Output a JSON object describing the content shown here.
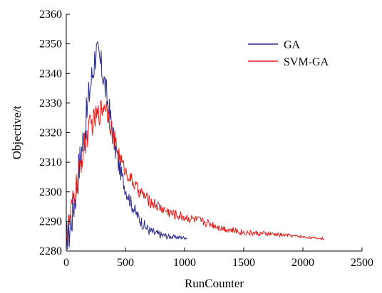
{
  "chart_data": {
    "type": "line",
    "title": "",
    "xlabel": "RunCounter",
    "ylabel": "Objective/t",
    "xlim": [
      0,
      2500
    ],
    "ylim": [
      2280,
      2360
    ],
    "xticks": [
      "0",
      "500",
      "1000",
      "1500",
      "2000",
      "2500"
    ],
    "yticks": [
      "2280",
      "2290",
      "2300",
      "2310",
      "2320",
      "2330",
      "2340",
      "2350",
      "2360"
    ],
    "grid": false,
    "legend_position": "top-right",
    "series": [
      {
        "name": "GA",
        "color": "#2b2b8f",
        "amplitude": 5,
        "points": [
          [
            0,
            2282
          ],
          [
            40,
            2290
          ],
          [
            80,
            2300
          ],
          [
            120,
            2312
          ],
          [
            160,
            2322
          ],
          [
            200,
            2335
          ],
          [
            230,
            2342
          ],
          [
            250,
            2348
          ],
          [
            270,
            2345
          ],
          [
            290,
            2343
          ],
          [
            310,
            2340
          ],
          [
            330,
            2335
          ],
          [
            360,
            2328
          ],
          [
            400,
            2318
          ],
          [
            450,
            2308
          ],
          [
            500,
            2301
          ],
          [
            550,
            2296
          ],
          [
            600,
            2292
          ],
          [
            650,
            2289
          ],
          [
            700,
            2287
          ],
          [
            750,
            2286
          ],
          [
            800,
            2285.5
          ],
          [
            850,
            2285
          ],
          [
            900,
            2284.8
          ],
          [
            950,
            2284.6
          ],
          [
            1020,
            2284.5
          ]
        ]
      },
      {
        "name": "SVM-GA",
        "color": "#e0201b",
        "amplitude": 3,
        "points": [
          [
            0,
            2284
          ],
          [
            50,
            2295
          ],
          [
            100,
            2305
          ],
          [
            150,
            2315
          ],
          [
            200,
            2322
          ],
          [
            250,
            2325
          ],
          [
            300,
            2328
          ],
          [
            330,
            2330
          ],
          [
            360,
            2326
          ],
          [
            400,
            2318
          ],
          [
            450,
            2312
          ],
          [
            500,
            2307
          ],
          [
            550,
            2304
          ],
          [
            600,
            2301
          ],
          [
            650,
            2299
          ],
          [
            700,
            2297
          ],
          [
            800,
            2294.5
          ],
          [
            900,
            2292.5
          ],
          [
            1000,
            2291.5
          ],
          [
            1100,
            2290.5
          ],
          [
            1200,
            2289.5
          ],
          [
            1300,
            2288
          ],
          [
            1400,
            2287
          ],
          [
            1500,
            2286.3
          ],
          [
            1600,
            2286
          ],
          [
            1700,
            2285.8
          ],
          [
            1800,
            2285.5
          ],
          [
            1900,
            2285.2
          ],
          [
            2000,
            2284.8
          ],
          [
            2100,
            2284.4
          ],
          [
            2180,
            2284.2
          ]
        ]
      }
    ]
  }
}
